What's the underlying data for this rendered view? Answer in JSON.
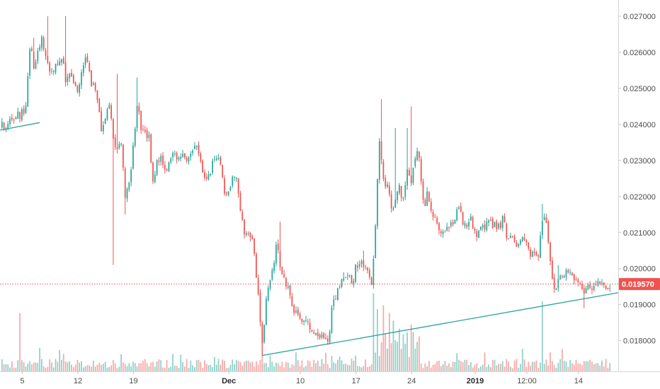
{
  "chart_data": {
    "type": "candlestick",
    "y_axis": {
      "position": "right",
      "ticks": [
        "0.027000",
        "0.026000",
        "0.025000",
        "0.024000",
        "0.023000",
        "0.022000",
        "0.021000",
        "0.020000",
        "0.019000",
        "0.018000"
      ],
      "ylim": [
        0.01715,
        0.02745
      ]
    },
    "x_axis": {
      "ticks": [
        {
          "label": "5",
          "day": 0
        },
        {
          "label": "12",
          "day": 7
        },
        {
          "label": "19",
          "day": 14
        },
        {
          "label": "Dec",
          "day": 26,
          "bold": true
        },
        {
          "label": "10",
          "day": 35
        },
        {
          "label": "17",
          "day": 42
        },
        {
          "label": "24",
          "day": 49
        },
        {
          "label": "2019",
          "day": 57,
          "bold": true
        },
        {
          "label": "12:00",
          "day": 63.5
        },
        {
          "label": "14",
          "day": 70
        }
      ],
      "xlim": [
        -2.8,
        75.0
      ]
    },
    "current_price": {
      "value": 0.01957,
      "label": "0.019570",
      "color": "#ef5350"
    },
    "colors": {
      "up": "#26a69a",
      "down": "#ef5350",
      "up_volume": "#8fd0c8",
      "down_volume": "#f6a9a7",
      "trendline": "#26a69a",
      "axis": "#d6d6d6"
    },
    "trendlines": [
      {
        "from": {
          "day": -2.8,
          "price": 0.02384
        },
        "to": {
          "day": 2.2,
          "price": 0.02405
        }
      },
      {
        "from": {
          "day": 30.2,
          "price": 0.01759
        },
        "to": {
          "day": 75.0,
          "price": 0.01933
        }
      }
    ],
    "close_path": [
      [
        -2.8,
        0.0239
      ],
      [
        -1.5,
        0.0241
      ],
      [
        0,
        0.0243
      ],
      [
        0.5,
        0.0246
      ],
      [
        1,
        0.0262
      ],
      [
        1.5,
        0.0256
      ],
      [
        2,
        0.026
      ],
      [
        2.5,
        0.0264
      ],
      [
        3,
        0.0258
      ],
      [
        3.5,
        0.0254
      ],
      [
        4,
        0.0256
      ],
      [
        5,
        0.0259
      ],
      [
        5.5,
        0.0252
      ],
      [
        6,
        0.0254
      ],
      [
        7,
        0.025
      ],
      [
        8,
        0.0259
      ],
      [
        8.6,
        0.0252
      ],
      [
        9,
        0.025
      ],
      [
        9.5,
        0.0246
      ],
      [
        10,
        0.0238
      ],
      [
        11,
        0.0247
      ],
      [
        11.5,
        0.0234
      ],
      [
        12.5,
        0.0235
      ],
      [
        13,
        0.0219
      ],
      [
        13.5,
        0.0225
      ],
      [
        14,
        0.0234
      ],
      [
        14.5,
        0.0247
      ],
      [
        15,
        0.0238
      ],
      [
        16,
        0.0236
      ],
      [
        16.5,
        0.0223
      ],
      [
        17,
        0.023
      ],
      [
        17.5,
        0.0232
      ],
      [
        18,
        0.0226
      ],
      [
        19,
        0.0232
      ],
      [
        20,
        0.0231
      ],
      [
        21,
        0.023
      ],
      [
        22,
        0.0234
      ],
      [
        22.5,
        0.0229
      ],
      [
        23.3,
        0.0224
      ],
      [
        24,
        0.023
      ],
      [
        25,
        0.0229
      ],
      [
        25.5,
        0.022
      ],
      [
        26,
        0.0223
      ],
      [
        27,
        0.0226
      ],
      [
        27.5,
        0.0214
      ],
      [
        28,
        0.021
      ],
      [
        29,
        0.0209
      ],
      [
        29.4,
        0.02
      ],
      [
        29.8,
        0.019
      ],
      [
        30.2,
        0.0179
      ],
      [
        30.5,
        0.0187
      ],
      [
        31,
        0.0195
      ],
      [
        31.5,
        0.0199
      ],
      [
        32,
        0.0208
      ],
      [
        32.5,
        0.0201
      ],
      [
        33,
        0.0196
      ],
      [
        33.5,
        0.0195
      ],
      [
        34,
        0.0189
      ],
      [
        35,
        0.0187
      ],
      [
        36,
        0.0185
      ],
      [
        37,
        0.0182
      ],
      [
        38,
        0.0181
      ],
      [
        38.5,
        0.018
      ],
      [
        39,
        0.0189
      ],
      [
        39.5,
        0.0192
      ],
      [
        40,
        0.0195
      ],
      [
        41,
        0.0199
      ],
      [
        41.5,
        0.0195
      ],
      [
        42,
        0.0201
      ],
      [
        43,
        0.0201
      ],
      [
        43.5,
        0.0198
      ],
      [
        44,
        0.0196
      ],
      [
        44.5,
        0.0215
      ],
      [
        45,
        0.0237
      ],
      [
        45.5,
        0.0223
      ],
      [
        46,
        0.0223
      ],
      [
        46.5,
        0.0216
      ],
      [
        47,
        0.0218
      ],
      [
        47.5,
        0.0223
      ],
      [
        48,
        0.0218
      ],
      [
        48.5,
        0.0228
      ],
      [
        49,
        0.0223
      ],
      [
        49.5,
        0.0232
      ],
      [
        50,
        0.0231
      ],
      [
        50.5,
        0.0217
      ],
      [
        51,
        0.0221
      ],
      [
        51.5,
        0.0214
      ],
      [
        52,
        0.0213
      ],
      [
        53,
        0.0209
      ],
      [
        54,
        0.0213
      ],
      [
        55,
        0.0216
      ],
      [
        56,
        0.021
      ],
      [
        56.5,
        0.0214
      ],
      [
        57,
        0.0209
      ],
      [
        58,
        0.0211
      ],
      [
        59,
        0.0213
      ],
      [
        60,
        0.0211
      ],
      [
        60.5,
        0.0215
      ],
      [
        61,
        0.0209
      ],
      [
        62,
        0.0207
      ],
      [
        63,
        0.0208
      ],
      [
        64,
        0.0204
      ],
      [
        64.5,
        0.0203
      ],
      [
        65,
        0.0204
      ],
      [
        65.5,
        0.0215
      ],
      [
        66,
        0.0211
      ],
      [
        66.5,
        0.02
      ],
      [
        67,
        0.0195
      ],
      [
        68,
        0.0199
      ],
      [
        69,
        0.0199
      ],
      [
        70,
        0.0196
      ],
      [
        70.5,
        0.0194
      ],
      [
        71,
        0.0194
      ],
      [
        72,
        0.0196
      ],
      [
        73,
        0.0195
      ],
      [
        74,
        0.01957
      ]
    ],
    "spikes": [
      {
        "day": 1.5,
        "high": 0.0264
      },
      {
        "day": 3.3,
        "high": 0.027
      },
      {
        "day": 5.5,
        "high": 0.027
      },
      {
        "day": 11.5,
        "low": 0.0201
      },
      {
        "day": 11.9,
        "high": 0.0254
      },
      {
        "day": 14.5,
        "high": 0.0253
      },
      {
        "day": 13,
        "low": 0.0215
      },
      {
        "day": 30.2,
        "low": 0.0176
      },
      {
        "day": 32.5,
        "high": 0.0213
      },
      {
        "day": 45.3,
        "high": 0.0247
      },
      {
        "day": 49,
        "high": 0.0245
      },
      {
        "day": 48.5,
        "high": 0.0239
      },
      {
        "day": 47,
        "high": 0.0239
      },
      {
        "day": 65.5,
        "high": 0.0218
      },
      {
        "day": 67.5,
        "high": 0.0201
      },
      {
        "day": 70.6,
        "low": 0.0189
      },
      {
        "day": 40.5,
        "high": 0.0199
      },
      {
        "day": 43,
        "high": 0.0205
      }
    ],
    "volume_spikes": [
      {
        "day": -0.3,
        "level": 0.75
      },
      {
        "day": 2.2,
        "level": 0.3
      },
      {
        "day": 30.3,
        "level": 0.5
      },
      {
        "day": 44.3,
        "level": 1.0
      },
      {
        "day": 45.5,
        "level": 0.85
      },
      {
        "day": 46.3,
        "level": 0.75
      },
      {
        "day": 47.4,
        "level": 0.55
      },
      {
        "day": 49,
        "level": 0.6
      },
      {
        "day": 48.5,
        "level": 0.5
      },
      {
        "day": 44.8,
        "level": 0.8
      },
      {
        "day": 46.8,
        "level": 0.65
      },
      {
        "day": 65.5,
        "level": 0.9
      }
    ]
  }
}
